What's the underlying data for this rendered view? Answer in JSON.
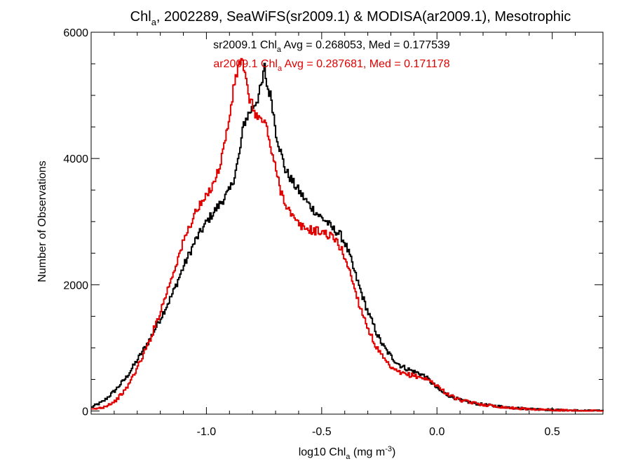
{
  "chart_data": {
    "type": "line",
    "title": {
      "pre": "Chl",
      "sub": "a",
      "post": ", 2002289, SeaWiFS(sr2009.1) & MODISA(ar2009.1), Mesotrophic"
    },
    "xlabel": {
      "pre": "log10 Chl",
      "sub": "a",
      "mid": " (mg m",
      "sup": "-3",
      "post": ")"
    },
    "ylabel": "Number of Observations",
    "xlim": [
      -1.5,
      0.72
    ],
    "ylim": [
      -50,
      6000
    ],
    "x_ticks": [
      {
        "value": -1.0,
        "label": "-1.0"
      },
      {
        "value": -0.5,
        "label": "-0.5"
      },
      {
        "value": 0.0,
        "label": "0.0"
      },
      {
        "value": 0.5,
        "label": "0.5"
      }
    ],
    "y_ticks": [
      {
        "value": 0,
        "label": "0"
      },
      {
        "value": 2000,
        "label": "2000"
      },
      {
        "value": 4000,
        "label": "4000"
      },
      {
        "value": 6000,
        "label": "6000"
      }
    ],
    "grid": false,
    "step": true,
    "annotations": [
      {
        "pre": "sr2009.1 Chl",
        "sub": "a",
        "post": " Avg = 0.268053, Med = 0.177539",
        "color": "#000000"
      },
      {
        "pre": "ar2009.1 Chl",
        "sub": "a",
        "post": " Avg = 0.287681, Med = 0.171178",
        "color": "#e00000"
      }
    ],
    "series": [
      {
        "color": "#000000",
        "x": [
          -1.5,
          -1.45,
          -1.4,
          -1.35,
          -1.3,
          -1.25,
          -1.2,
          -1.15,
          -1.1,
          -1.05,
          -1.0,
          -0.95,
          -0.9,
          -0.88,
          -0.86,
          -0.84,
          -0.82,
          -0.8,
          -0.78,
          -0.76,
          -0.75,
          -0.74,
          -0.72,
          -0.7,
          -0.68,
          -0.66,
          -0.64,
          -0.62,
          -0.6,
          -0.58,
          -0.56,
          -0.54,
          -0.52,
          -0.5,
          -0.48,
          -0.46,
          -0.44,
          -0.42,
          -0.4,
          -0.38,
          -0.36,
          -0.34,
          -0.32,
          -0.3,
          -0.28,
          -0.26,
          -0.24,
          -0.22,
          -0.2,
          -0.18,
          -0.16,
          -0.14,
          -0.12,
          -0.1,
          -0.08,
          -0.06,
          -0.04,
          -0.02,
          0.0,
          0.02,
          0.04,
          0.06,
          0.08,
          0.1,
          0.15,
          0.2,
          0.25,
          0.3,
          0.35,
          0.4,
          0.45,
          0.5,
          0.55,
          0.6,
          0.65,
          0.7,
          0.72
        ],
        "y": [
          60,
          150,
          320,
          530,
          820,
          1120,
          1480,
          1850,
          2300,
          2700,
          3000,
          3250,
          3500,
          3730,
          4050,
          4550,
          4700,
          4820,
          4950,
          5200,
          5450,
          5150,
          4950,
          4400,
          4100,
          3820,
          3700,
          3580,
          3480,
          3380,
          3280,
          3200,
          3120,
          3050,
          3000,
          2900,
          2850,
          2780,
          2650,
          2450,
          2200,
          1980,
          1760,
          1550,
          1380,
          1200,
          1060,
          950,
          860,
          780,
          720,
          680,
          650,
          620,
          600,
          560,
          500,
          430,
          350,
          300,
          260,
          230,
          200,
          170,
          130,
          100,
          80,
          60,
          45,
          35,
          25,
          18,
          12,
          8,
          5,
          3,
          2
        ]
      },
      {
        "color": "#e00000",
        "x": [
          -1.5,
          -1.45,
          -1.4,
          -1.35,
          -1.3,
          -1.25,
          -1.2,
          -1.15,
          -1.1,
          -1.05,
          -1.0,
          -0.95,
          -0.92,
          -0.9,
          -0.88,
          -0.86,
          -0.85,
          -0.84,
          -0.82,
          -0.8,
          -0.78,
          -0.76,
          -0.74,
          -0.72,
          -0.7,
          -0.68,
          -0.66,
          -0.64,
          -0.62,
          -0.6,
          -0.58,
          -0.56,
          -0.54,
          -0.52,
          -0.5,
          -0.48,
          -0.46,
          -0.44,
          -0.42,
          -0.4,
          -0.38,
          -0.36,
          -0.34,
          -0.32,
          -0.3,
          -0.28,
          -0.26,
          -0.24,
          -0.22,
          -0.2,
          -0.18,
          -0.16,
          -0.14,
          -0.12,
          -0.1,
          -0.08,
          -0.06,
          -0.04,
          -0.02,
          0.0,
          0.02,
          0.04,
          0.06,
          0.08,
          0.1,
          0.15,
          0.2,
          0.25,
          0.3,
          0.35,
          0.4,
          0.45,
          0.5,
          0.55,
          0.6,
          0.65,
          0.7,
          0.72
        ],
        "y": [
          20,
          60,
          150,
          350,
          700,
          1100,
          1600,
          2150,
          2700,
          3150,
          3400,
          3800,
          4300,
          4700,
          5200,
          5500,
          5600,
          5400,
          5000,
          4800,
          4650,
          4600,
          4500,
          4100,
          3800,
          3500,
          3300,
          3150,
          3020,
          2950,
          2900,
          2880,
          2860,
          2850,
          2840,
          2800,
          2760,
          2700,
          2580,
          2420,
          2200,
          1950,
          1700,
          1500,
          1300,
          1120,
          980,
          860,
          760,
          680,
          630,
          600,
          580,
          570,
          560,
          540,
          520,
          490,
          450,
          400,
          330,
          280,
          240,
          200,
          170,
          130,
          100,
          75,
          55,
          40,
          30,
          22,
          15,
          10,
          6,
          4,
          2,
          1
        ]
      }
    ]
  }
}
